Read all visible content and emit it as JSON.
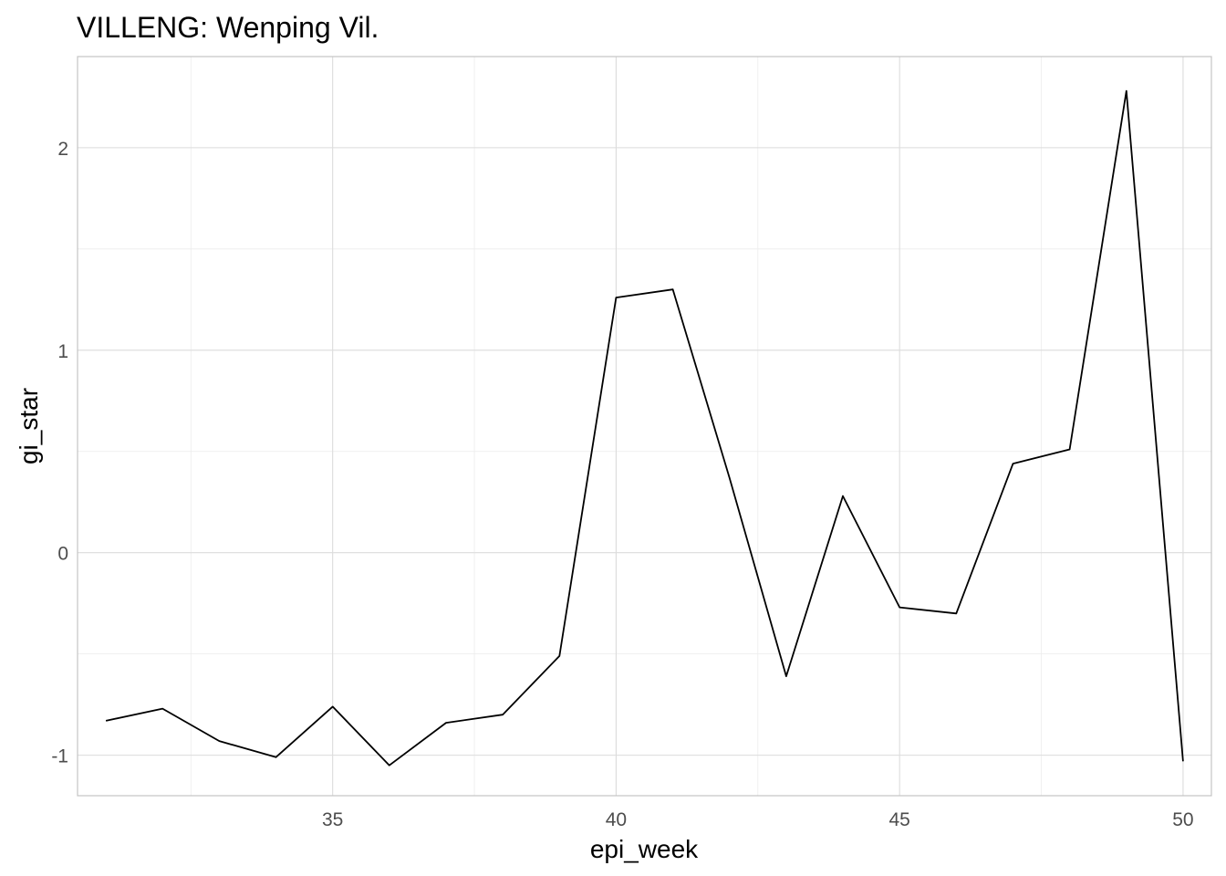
{
  "chart_data": {
    "type": "line",
    "title": "VILLENG: Wenping Vil.",
    "xlabel": "epi_week",
    "ylabel": "gi_star",
    "xlim": [
      30.5,
      50.5
    ],
    "ylim": [
      -1.2,
      2.45
    ],
    "x_ticks": [
      35,
      40,
      45,
      50
    ],
    "x_tick_labels": [
      "35",
      "40",
      "45",
      "50"
    ],
    "y_ticks": [
      -1,
      0,
      1,
      2
    ],
    "y_tick_labels": [
      "-1",
      "0",
      "1",
      "2"
    ],
    "grid": true,
    "legend": "none",
    "line_color": "#000000",
    "series": [
      {
        "x": [
          31,
          32,
          33,
          34,
          35,
          36,
          37,
          38,
          39,
          40,
          41,
          42,
          43,
          44,
          45,
          46,
          47,
          48,
          49,
          50
        ],
        "values": [
          -0.83,
          -0.77,
          -0.93,
          -1.01,
          -0.76,
          -1.05,
          -0.84,
          -0.8,
          -0.51,
          1.26,
          1.3,
          0.37,
          -0.61,
          0.28,
          -0.27,
          -0.3,
          0.44,
          0.51,
          2.28,
          -1.03
        ]
      }
    ]
  }
}
